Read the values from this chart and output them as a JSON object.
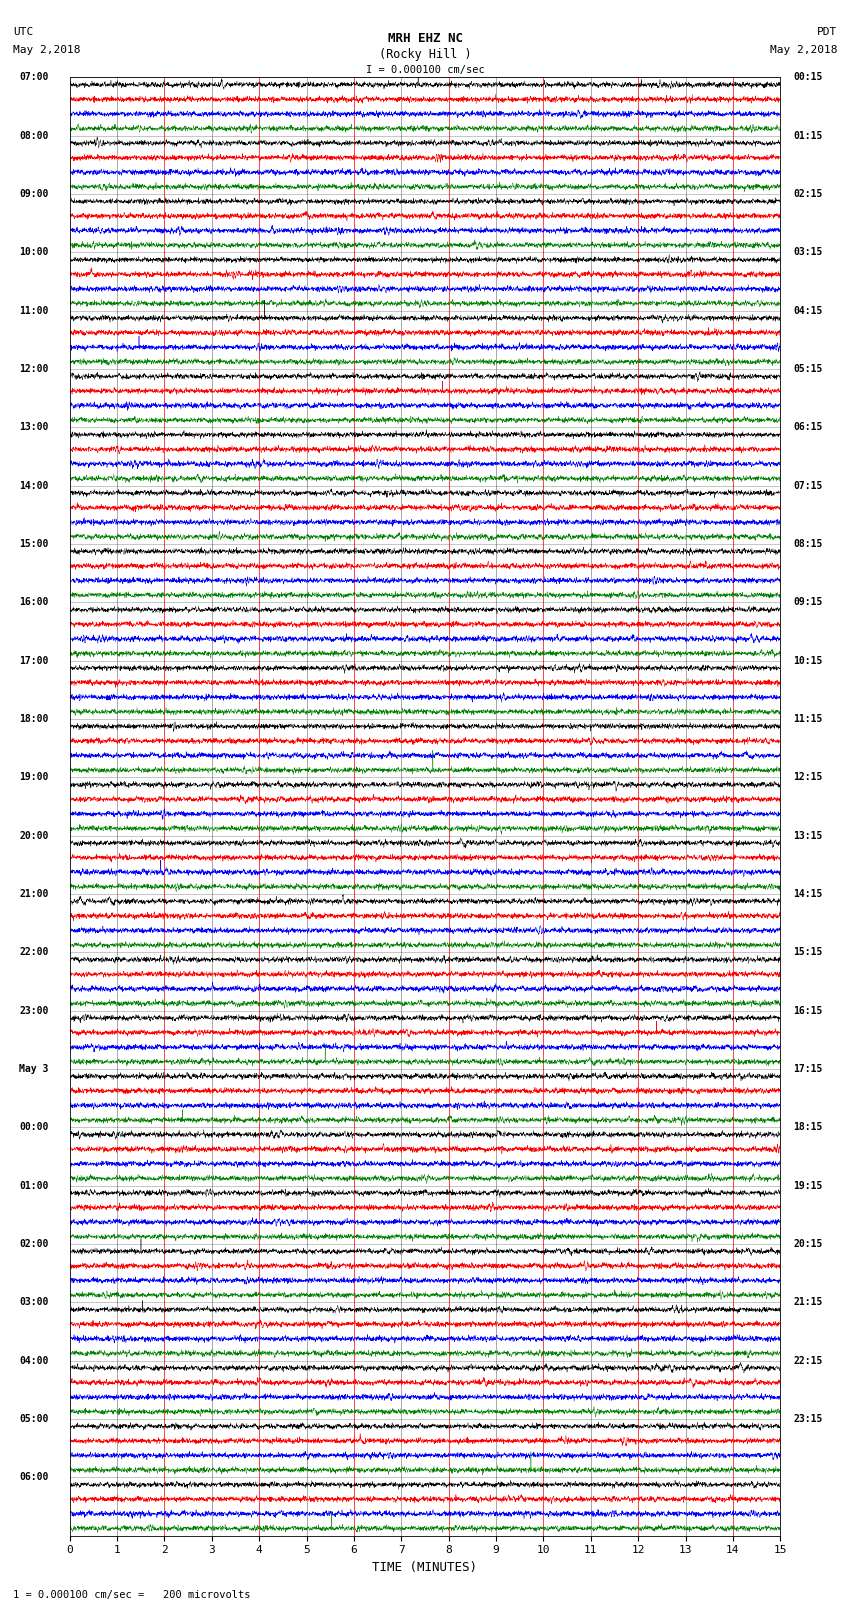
{
  "title_line1": "MRH EHZ NC",
  "title_line2": "(Rocky Hill )",
  "title_line3": "I = 0.000100 cm/sec",
  "left_header_line1": "UTC",
  "left_header_line2": "May 2,2018",
  "right_header_line1": "PDT",
  "right_header_line2": "May 2,2018",
  "xlabel": "TIME (MINUTES)",
  "footer": "1 = 0.000100 cm/sec =   200 microvolts",
  "time_min": 0,
  "time_max": 15,
  "bg_color": "#ffffff",
  "trace_colors": [
    "black",
    "red",
    "blue",
    "green"
  ],
  "left_labels": [
    "07:00",
    "08:00",
    "09:00",
    "10:00",
    "11:00",
    "12:00",
    "13:00",
    "14:00",
    "15:00",
    "16:00",
    "17:00",
    "18:00",
    "19:00",
    "20:00",
    "21:00",
    "22:00",
    "23:00",
    "May 3",
    "00:00",
    "01:00",
    "02:00",
    "03:00",
    "04:00",
    "05:00",
    "06:00"
  ],
  "right_labels": [
    "00:15",
    "01:15",
    "02:15",
    "03:15",
    "04:15",
    "05:15",
    "06:15",
    "07:15",
    "08:15",
    "09:15",
    "10:15",
    "11:15",
    "12:15",
    "13:15",
    "14:15",
    "15:15",
    "16:15",
    "17:15",
    "18:15",
    "19:15",
    "20:15",
    "21:15",
    "22:15",
    "23:15"
  ],
  "n_traces_per_group": 4,
  "n_groups": 25,
  "trace_amplitude": 0.42,
  "noise_seed": 42,
  "xticks": [
    0,
    1,
    2,
    3,
    4,
    5,
    6,
    7,
    8,
    9,
    10,
    11,
    12,
    13,
    14,
    15
  ],
  "vline_colors": [
    "#888888",
    "red",
    "#888888",
    "red",
    "#888888",
    "red",
    "#888888",
    "red",
    "#888888",
    "red",
    "#888888",
    "red",
    "#888888",
    "red",
    "#888888"
  ]
}
